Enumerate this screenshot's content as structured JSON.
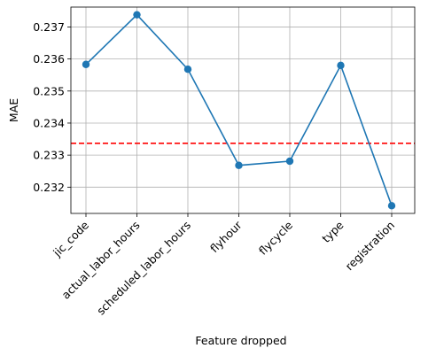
{
  "chart_data": {
    "type": "line",
    "title": "",
    "xlabel": "Feature dropped",
    "ylabel": "MAE",
    "categories": [
      "jic_code",
      "actual_labor_hours",
      "scheduled_labor_hours",
      "flyhour",
      "flycycle",
      "type",
      "registration"
    ],
    "series": [
      {
        "values": [
          0.23583,
          0.23738,
          0.23568,
          0.23268,
          0.23281,
          0.2358,
          0.23142
        ],
        "color": "#1f77b4",
        "marker": "circle"
      }
    ],
    "reference_line": {
      "value": 0.23337,
      "color": "#ff0000",
      "style": "dashed"
    },
    "yticks": [
      0.232,
      0.233,
      0.234,
      0.235,
      0.236,
      0.237
    ],
    "ytick_labels": [
      "0.232",
      "0.233",
      "0.234",
      "0.235",
      "0.236",
      "0.237"
    ],
    "ylim": [
      0.23118,
      0.23762
    ],
    "grid": true,
    "xtick_rotation_deg": 45
  }
}
